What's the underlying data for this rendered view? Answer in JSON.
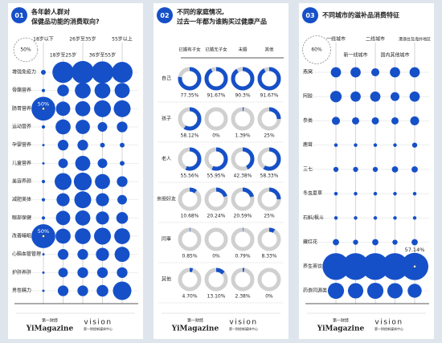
{
  "chart_data": [
    {
      "type": "bubble-grid",
      "badge": "01",
      "title": [
        "各年龄人群对",
        "保健品功能的消费取向?"
      ],
      "color": "#1650c8",
      "size_legend": {
        "value": 50,
        "label": "50%"
      },
      "categories": [
        "18岁以下",
        "18岁至25岁",
        "26岁至35岁",
        "36岁至55岁",
        "55岁以上"
      ],
      "series": [
        {
          "name": "增强免疫力",
          "values": [
            2,
            40,
            45,
            42,
            38
          ]
        },
        {
          "name": "骨骼营养",
          "values": [
            1,
            12,
            22,
            22,
            20
          ]
        },
        {
          "name": "肠胃营养",
          "values": [
            50,
            18,
            20,
            25,
            25
          ],
          "value_labels": [
            "50%",
            null,
            null,
            null,
            null
          ]
        },
        {
          "name": "运动营养",
          "values": [
            1,
            20,
            18,
            8,
            10
          ]
        },
        {
          "name": "孕婴营养",
          "values": [
            0.5,
            10,
            10,
            2,
            2
          ]
        },
        {
          "name": "儿童营养",
          "values": [
            0.5,
            8,
            20,
            8,
            2
          ]
        },
        {
          "name": "美容养颜",
          "values": [
            1,
            25,
            28,
            20,
            10
          ]
        },
        {
          "name": "减肥美体",
          "values": [
            1,
            15,
            25,
            15,
            8
          ]
        },
        {
          "name": "眼部保健",
          "values": [
            1,
            18,
            20,
            15,
            12
          ]
        },
        {
          "name": "改善睡眠",
          "values": [
            50,
            20,
            22,
            25,
            22
          ],
          "value_labels": [
            "50%",
            null,
            null,
            null,
            null
          ]
        },
        {
          "name": "心脑血管管理",
          "values": [
            0.5,
            10,
            10,
            15,
            20
          ]
        },
        {
          "name": "护肝养肝",
          "values": [
            0.5,
            8,
            10,
            10,
            10
          ]
        },
        {
          "name": "男性精力",
          "values": [
            0.5,
            10,
            10,
            12,
            30
          ]
        }
      ]
    },
    {
      "type": "donut-grid",
      "badge": "02",
      "title": [
        "不同的家庭情况,",
        "过去一年都为谁购买过健康产品"
      ],
      "color": "#1650c8",
      "categories": [
        "已婚有子女",
        "已婚无子女",
        "未婚",
        "其他"
      ],
      "series": [
        {
          "name": "自己",
          "values": [
            77.35,
            91.67,
            90.3,
            91.67
          ],
          "value_labels": [
            "77.35%",
            "91.67%",
            "90.3%",
            "91.67%"
          ]
        },
        {
          "name": "孩子",
          "values": [
            58.12,
            0,
            1.39,
            25
          ],
          "value_labels": [
            "58.12%",
            "0%",
            "1.39%",
            "25%"
          ]
        },
        {
          "name": "老人",
          "values": [
            55.56,
            55.95,
            42.38,
            58.33
          ],
          "value_labels": [
            "55.56%",
            "55.95%",
            "42.38%",
            "58.33%"
          ]
        },
        {
          "name": "亲朋好友",
          "values": [
            10.68,
            20.24,
            20.59,
            25
          ],
          "value_labels": [
            "10.68%",
            "20.24%",
            "20.59%",
            "25%"
          ]
        },
        {
          "name": "同事",
          "values": [
            0.85,
            0,
            0.79,
            8.33
          ],
          "value_labels": [
            "0.85%",
            "0%",
            "0.79%",
            "8.33%"
          ]
        },
        {
          "name": "其他",
          "values": [
            4.7,
            13.1,
            2.38,
            0
          ],
          "value_labels": [
            "4.70%",
            "13.10%",
            "2.38%",
            "0%"
          ]
        }
      ]
    },
    {
      "type": "bubble-grid",
      "badge": "03",
      "title": [
        "不同城市的滋补品消费特征"
      ],
      "color": "#1650c8",
      "size_legend": {
        "value": 60,
        "label": "60%"
      },
      "categories": [
        "一线城市",
        "新一线城市",
        "二线城市",
        "国内其他城市",
        "港澳台及海外地区"
      ],
      "series": [
        {
          "name": "燕窝",
          "values": [
            8,
            8,
            5,
            8,
            8
          ]
        },
        {
          "name": "阿胶",
          "values": [
            10,
            8,
            8,
            6,
            8
          ]
        },
        {
          "name": "参类",
          "values": [
            5,
            4,
            4,
            4,
            6
          ]
        },
        {
          "name": "鹿茸",
          "values": [
            1,
            1,
            1,
            1,
            2
          ]
        },
        {
          "name": "三七",
          "values": [
            2,
            2,
            2,
            3,
            3
          ]
        },
        {
          "name": "冬虫夏草",
          "values": [
            1,
            1,
            1,
            1,
            1
          ]
        },
        {
          "name": "石斛/枫斗",
          "values": [
            1,
            1,
            1,
            1,
            1
          ]
        },
        {
          "name": "藏红花",
          "values": [
            3,
            2,
            3,
            2,
            3
          ]
        },
        {
          "name": "养生茶饮",
          "values": [
            55,
            55,
            55,
            55,
            57.14
          ],
          "value_labels": [
            null,
            null,
            null,
            null,
            "57.14%"
          ]
        },
        {
          "name": "药食同源类",
          "values": [
            20,
            18,
            20,
            18,
            15
          ]
        }
      ]
    }
  ],
  "footer": {
    "brand": "第一财经",
    "brand_en": "YiMagazine",
    "partner": "vision",
    "partner_cn": "第一财经新媒体中心"
  }
}
